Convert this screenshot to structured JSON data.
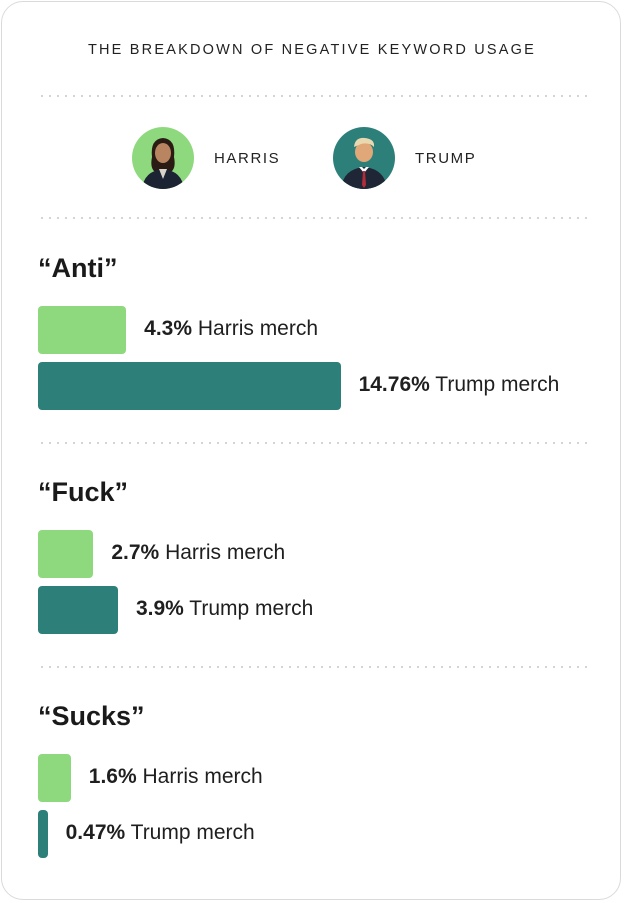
{
  "title": "THE BREAKDOWN OF NEGATIVE KEYWORD USAGE",
  "legend": [
    {
      "name": "HARRIS",
      "color": "#8ed97e",
      "icon": "harris-avatar"
    },
    {
      "name": "TRUMP",
      "color": "#2d7f7a",
      "icon": "trump-avatar"
    }
  ],
  "colors": {
    "harris": "#8ed97e",
    "trump": "#2d7f7a"
  },
  "chart_data": {
    "type": "bar",
    "orientation": "horizontal",
    "title": "THE BREAKDOWN OF NEGATIVE KEYWORD USAGE",
    "categories": [
      "“Anti”",
      "“Fuck”",
      "“Sucks”"
    ],
    "series": [
      {
        "name": "HARRIS",
        "values": [
          4.3,
          2.7,
          1.6
        ],
        "labels": [
          "4.3%",
          "2.7%",
          "1.6%"
        ],
        "suffix": "Harris merch"
      },
      {
        "name": "TRUMP",
        "values": [
          14.76,
          3.9,
          0.47
        ],
        "labels": [
          "14.76%",
          "3.9%",
          "0.47%"
        ],
        "suffix": "Trump merch"
      }
    ],
    "unit": "%",
    "grid": false,
    "legend": "top"
  }
}
